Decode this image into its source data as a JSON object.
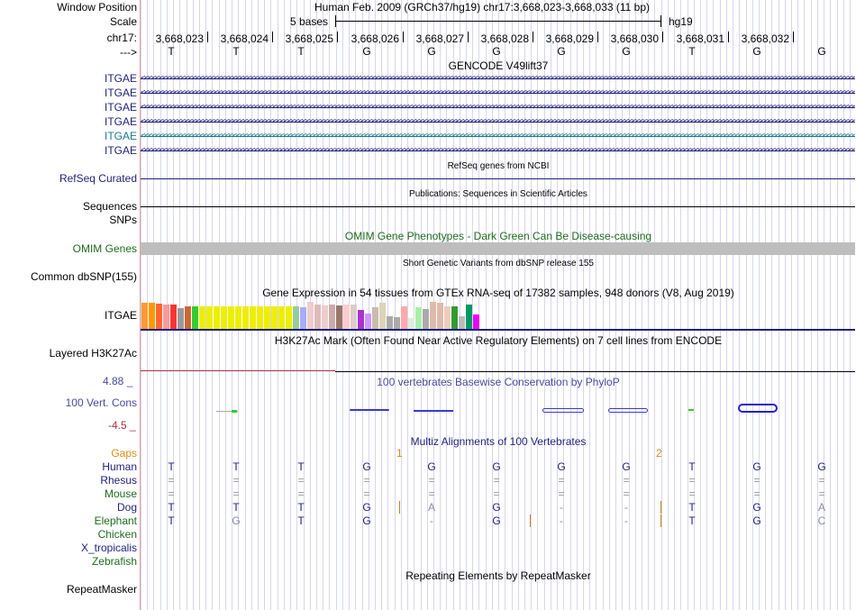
{
  "labels": {
    "window_position": "Window Position",
    "scale": "Scale",
    "chrom": "chr17:",
    "strand": "--->",
    "gene_rows": [
      "ITGAE",
      "ITGAE",
      "ITGAE",
      "ITGAE",
      "ITGAE",
      "ITGAE"
    ],
    "refseq": "RefSeq Curated",
    "sequences": "Sequences",
    "snps": "SNPs",
    "omim": "OMIM Genes",
    "dbsnp": "Common dbSNP(155)",
    "gtex": "ITGAE",
    "h3k27": "Layered H3K27Ac",
    "cons_max": "4.88 _",
    "cons_label": "100 Vert. Cons",
    "cons_min": "-4.5 _",
    "gaps": "Gaps",
    "species": [
      "Human",
      "Rhesus",
      "Mouse",
      "Dog",
      "Elephant",
      "Chicken",
      "X_tropicalis",
      "Zebrafish"
    ],
    "repeatmasker": "RepeatMasker"
  },
  "header": {
    "position": "Human Feb. 2009 (GRCh37/hg19)   chr17:3,668,023-3,668,033 (11 bp)",
    "scale_text": "5 bases",
    "assembly": "hg19",
    "coordinates": [
      "3,668,023",
      "3,668,024",
      "3,668,025",
      "3,668,026",
      "3,668,027",
      "3,668,028",
      "3,668,029",
      "3,668,030",
      "3,668,031",
      "3,668,032"
    ],
    "bases": [
      "T",
      "T",
      "T",
      "G",
      "G",
      "G",
      "G",
      "G",
      "T",
      "G",
      "G"
    ]
  },
  "tracks": {
    "gencode": "GENCODE V49lift37",
    "refseq": "RefSeq genes from NCBI",
    "publications": "Publications: Sequences in Scientific Articles",
    "omim": "OMIM Gene Phenotypes - Dark Green Can Be Disease-causing",
    "dbsnp": "Short Genetic Variants from dbSNP release 155",
    "gtex": "Gene Expression in 54 tissues from GTEx RNA-seq of 17382 samples, 948 donors (V8, Aug 2019)",
    "h3k27": "H3K27Ac Mark (Often Found Near Active Regulatory Elements) on 7 cell lines from ENCODE",
    "phylop": "100 vertebrates Basewise Conservation by PhyloP",
    "multiz": "Multiz Alignments of 100 Vertebrates",
    "repeatmasker": "Repeating Elements by RepeatMasker"
  },
  "gene_arrows": "<<<<<<<<<<<<<<<<<<<<<<<<<<<<<<<<<<<<<<<<<<<<<<<<<<<<<<<<<<<<<<<<<<<<<<<<<<<<<<<<<<<<<<<<<<<<<<<<<<<<<<<<<<<<<<<<<<<<<<<<<<<<<<<<<<<<<<<<<<<<<<<<<<<<<<<<<<<<<<<<<<<<<<<<<<<<<<<<<<<<<<<<<<<<<<<<<<<<<<<<<<<<<<<<<<<<<<<<<<<<<<<<<<<<<<<<<<<",
  "gaps": [
    "1",
    "2"
  ],
  "alignment": [
    [
      "T",
      "T",
      "T",
      "G",
      "G",
      "G",
      "G",
      "G",
      "T",
      "G",
      "G"
    ],
    [
      "=",
      "=",
      "=",
      "=",
      "=",
      "=",
      "=",
      "=",
      "=",
      "=",
      "="
    ],
    [
      "=",
      "=",
      "=",
      "=",
      "=",
      "=",
      "=",
      "=",
      "=",
      "=",
      "="
    ],
    [
      "T",
      "T",
      "T",
      "G",
      "A",
      "G",
      "-",
      "-",
      "T",
      "G",
      "A"
    ],
    [
      "T",
      "G",
      "T",
      "G",
      "-",
      "G",
      "-",
      "-",
      "T",
      "G",
      "C"
    ]
  ],
  "gtex_colors": [
    "#ff9933",
    "#ff9900",
    "#ff6633",
    "#ff9999",
    "#ff3333",
    "#999999",
    "#cc6633",
    "#33cc33",
    "#eeee00",
    "#eeee00",
    "#eeee00",
    "#eeee00",
    "#eeee00",
    "#eeee00",
    "#eeee00",
    "#eeee00",
    "#eeee00",
    "#eeee00",
    "#eeee00",
    "#eeee00",
    "#eeee00",
    "#99cc99",
    "#aaaaff",
    "#eecccc",
    "#ddbbbb",
    "#eecccc",
    "#ccaaaa",
    "#997766",
    "#ffcccc",
    "#ddcccc",
    "#aa33cc",
    "#cc99ff",
    "#ccbbaa",
    "#ddd3ba",
    "#aaaaaa",
    "#aaaaaa",
    "#ffaaaa",
    "#ddeedd",
    "#aaeeaa",
    "#aaaaaa",
    "#ddbbaa",
    "#ddbbaa",
    "#eeccbb",
    "#339933",
    "#bbbbbb",
    "#009966",
    "#ee00ee"
  ],
  "gtex_heights": [
    0.96,
    0.96,
    0.93,
    0.89,
    0.9,
    0.78,
    0.83,
    0.84,
    0.84,
    0.84,
    0.84,
    0.84,
    0.84,
    0.84,
    0.84,
    0.84,
    0.84,
    0.84,
    0.84,
    0.84,
    0.84,
    0.84,
    0.79,
    0.99,
    0.9,
    0.87,
    0.9,
    0.87,
    0.9,
    0.89,
    0.7,
    0.58,
    0.81,
    0.97,
    0.48,
    0.44,
    0.84,
    0.4,
    0.79,
    0.74,
    1,
    0.97,
    0.84,
    0.83,
    0.45,
    0.91,
    0.53
  ]
}
